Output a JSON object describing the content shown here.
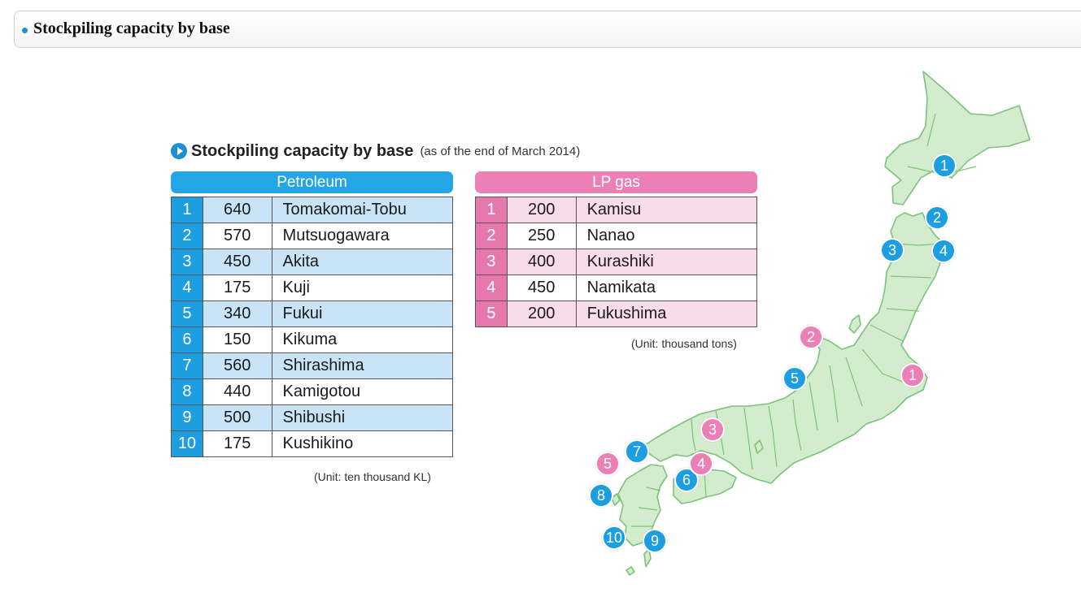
{
  "header": {
    "title": "Stockpiling capacity by base"
  },
  "figure": {
    "title": "Stockpiling capacity by base",
    "subtitle": "(as of the end of March 2014)"
  },
  "petroleum": {
    "header": "Petroleum",
    "unit": "(Unit: ten thousand KL)",
    "rows": [
      {
        "no": "1",
        "value": "640",
        "name": "Tomakomai-Tobu"
      },
      {
        "no": "2",
        "value": "570",
        "name": "Mutsuogawara"
      },
      {
        "no": "3",
        "value": "450",
        "name": "Akita"
      },
      {
        "no": "4",
        "value": "175",
        "name": "Kuji"
      },
      {
        "no": "5",
        "value": "340",
        "name": "Fukui"
      },
      {
        "no": "6",
        "value": "150",
        "name": "Kikuma"
      },
      {
        "no": "7",
        "value": "560",
        "name": "Shirashima"
      },
      {
        "no": "8",
        "value": "440",
        "name": "Kamigotou"
      },
      {
        "no": "9",
        "value": "500",
        "name": "Shibushi"
      },
      {
        "no": "10",
        "value": "175",
        "name": "Kushikino"
      }
    ]
  },
  "lpgas": {
    "header": "LP gas",
    "unit": "(Unit: thousand tons)",
    "rows": [
      {
        "no": "1",
        "value": "200",
        "name": "Kamisu"
      },
      {
        "no": "2",
        "value": "250",
        "name": "Nanao"
      },
      {
        "no": "3",
        "value": "400",
        "name": "Kurashiki"
      },
      {
        "no": "4",
        "value": "450",
        "name": "Namikata"
      },
      {
        "no": "5",
        "value": "200",
        "name": "Fukushima"
      }
    ]
  },
  "map": {
    "petroleum_markers": [
      "1",
      "2",
      "3",
      "4",
      "5",
      "6",
      "7",
      "8",
      "9",
      "10"
    ],
    "lpgas_markers": [
      "1",
      "2",
      "3",
      "4",
      "5"
    ]
  },
  "colors": {
    "petroleum": "#1c9ee0",
    "lpgas": "#ec80b6",
    "land": "#d3ecce",
    "border": "#7cc27c"
  }
}
